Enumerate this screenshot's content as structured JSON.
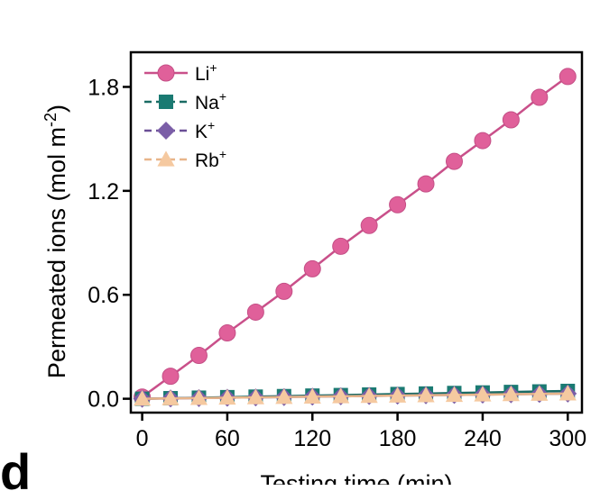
{
  "panel_label": "d",
  "chart_data": {
    "type": "line",
    "title": "",
    "xlabel": "Testing time (min)",
    "ylabel": "Permeated ions (mol  m",
    "ylabel_sup": "-2",
    "ylabel_close": ")",
    "xlim": [
      -8,
      310
    ],
    "ylim": [
      -0.08,
      2.0
    ],
    "xticks": [
      0,
      60,
      120,
      180,
      240,
      300
    ],
    "xtick_labels": [
      "0",
      "60",
      "120",
      "180",
      "240",
      "300"
    ],
    "yticks": [
      0.0,
      0.6,
      1.2,
      1.8
    ],
    "ytick_labels": [
      "0.0",
      "0.6",
      "1.2",
      "1.8"
    ],
    "grid": false,
    "legend_position": "top-left",
    "x": [
      0,
      20,
      40,
      60,
      80,
      100,
      120,
      140,
      160,
      180,
      200,
      220,
      240,
      260,
      280,
      300
    ],
    "series": [
      {
        "name": "Li",
        "name_sup": "+",
        "marker": "circle",
        "color": "#e0609a",
        "line_color": "#c9508a",
        "values": [
          0.01,
          0.13,
          0.25,
          0.38,
          0.5,
          0.62,
          0.75,
          0.88,
          1.0,
          1.12,
          1.24,
          1.37,
          1.49,
          1.61,
          1.74,
          1.86
        ]
      },
      {
        "name": "Na",
        "name_sup": "+",
        "marker": "square",
        "color": "#1a7a72",
        "line_color": "#1a6b64",
        "values": [
          0.0,
          0.003,
          0.006,
          0.009,
          0.012,
          0.015,
          0.018,
          0.021,
          0.024,
          0.027,
          0.03,
          0.033,
          0.036,
          0.039,
          0.042,
          0.045
        ]
      },
      {
        "name": "K",
        "name_sup": "+",
        "marker": "diamond",
        "color": "#7b5ea7",
        "line_color": "#6a4f96",
        "values": [
          0.0,
          0.002,
          0.004,
          0.006,
          0.008,
          0.01,
          0.012,
          0.014,
          0.016,
          0.018,
          0.02,
          0.022,
          0.024,
          0.026,
          0.028,
          0.03
        ]
      },
      {
        "name": "Rb",
        "name_sup": "+",
        "marker": "triangle",
        "color": "#f5c9a0",
        "line_color": "#e8b58a",
        "values": [
          0.0,
          0.002,
          0.004,
          0.006,
          0.008,
          0.01,
          0.012,
          0.014,
          0.016,
          0.018,
          0.02,
          0.022,
          0.024,
          0.026,
          0.028,
          0.03
        ]
      }
    ]
  }
}
